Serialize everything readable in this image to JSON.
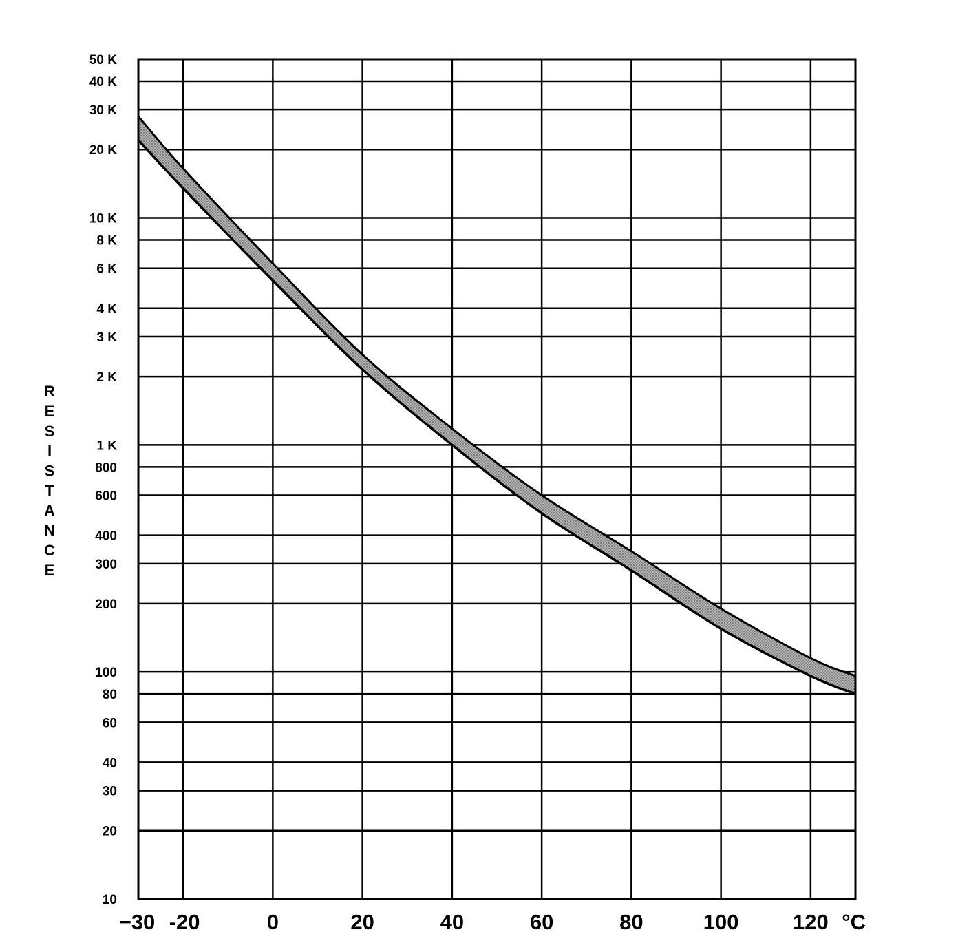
{
  "chart_data": {
    "type": "area",
    "title": "",
    "xlabel": "",
    "ylabel": "RESISTANCE",
    "x_unit": "°C",
    "y_scale": "log",
    "xlim": [
      -30,
      130
    ],
    "ylim": [
      10,
      50000
    ],
    "grid": true,
    "x_ticks": [
      {
        "value": -30,
        "label": "−30"
      },
      {
        "value": -20,
        "label": "-20"
      },
      {
        "value": 0,
        "label": "0"
      },
      {
        "value": 20,
        "label": "20"
      },
      {
        "value": 40,
        "label": "40"
      },
      {
        "value": 60,
        "label": "60"
      },
      {
        "value": 80,
        "label": "80"
      },
      {
        "value": 100,
        "label": "100"
      },
      {
        "value": 120,
        "label": "120"
      }
    ],
    "x_grid": [
      -30,
      -20,
      0,
      20,
      40,
      60,
      80,
      100,
      120,
      130
    ],
    "y_ticks": [
      {
        "value": 50000,
        "label": "50 K"
      },
      {
        "value": 40000,
        "label": "40 K"
      },
      {
        "value": 30000,
        "label": "30 K"
      },
      {
        "value": 20000,
        "label": "20 K"
      },
      {
        "value": 10000,
        "label": "10 K"
      },
      {
        "value": 8000,
        "label": "8 K"
      },
      {
        "value": 6000,
        "label": "6 K"
      },
      {
        "value": 4000,
        "label": "4 K"
      },
      {
        "value": 3000,
        "label": "3 K"
      },
      {
        "value": 2000,
        "label": "2 K"
      },
      {
        "value": 1000,
        "label": "1 K"
      },
      {
        "value": 800,
        "label": "800"
      },
      {
        "value": 600,
        "label": "600"
      },
      {
        "value": 400,
        "label": "400"
      },
      {
        "value": 300,
        "label": "300"
      },
      {
        "value": 200,
        "label": "200"
      },
      {
        "value": 100,
        "label": "100"
      },
      {
        "value": 80,
        "label": "80"
      },
      {
        "value": 60,
        "label": "60"
      },
      {
        "value": 40,
        "label": "40"
      },
      {
        "value": 30,
        "label": "30"
      },
      {
        "value": 20,
        "label": "20"
      },
      {
        "value": 10,
        "label": "10"
      }
    ],
    "series": [
      {
        "x": [
          -30,
          -20,
          0,
          20,
          40,
          60,
          80,
          100,
          120,
          130
        ],
        "upper": [
          28000,
          16500,
          6300,
          2500,
          1180,
          600,
          340,
          190,
          115,
          96
        ],
        "lower": [
          22000,
          13500,
          5300,
          2150,
          1000,
          500,
          280,
          155,
          96,
          80
        ]
      }
    ],
    "band_color": "#a9a9a9"
  },
  "axis": {
    "x_unit_label": "°C",
    "y_label": "RESISTANCE"
  }
}
